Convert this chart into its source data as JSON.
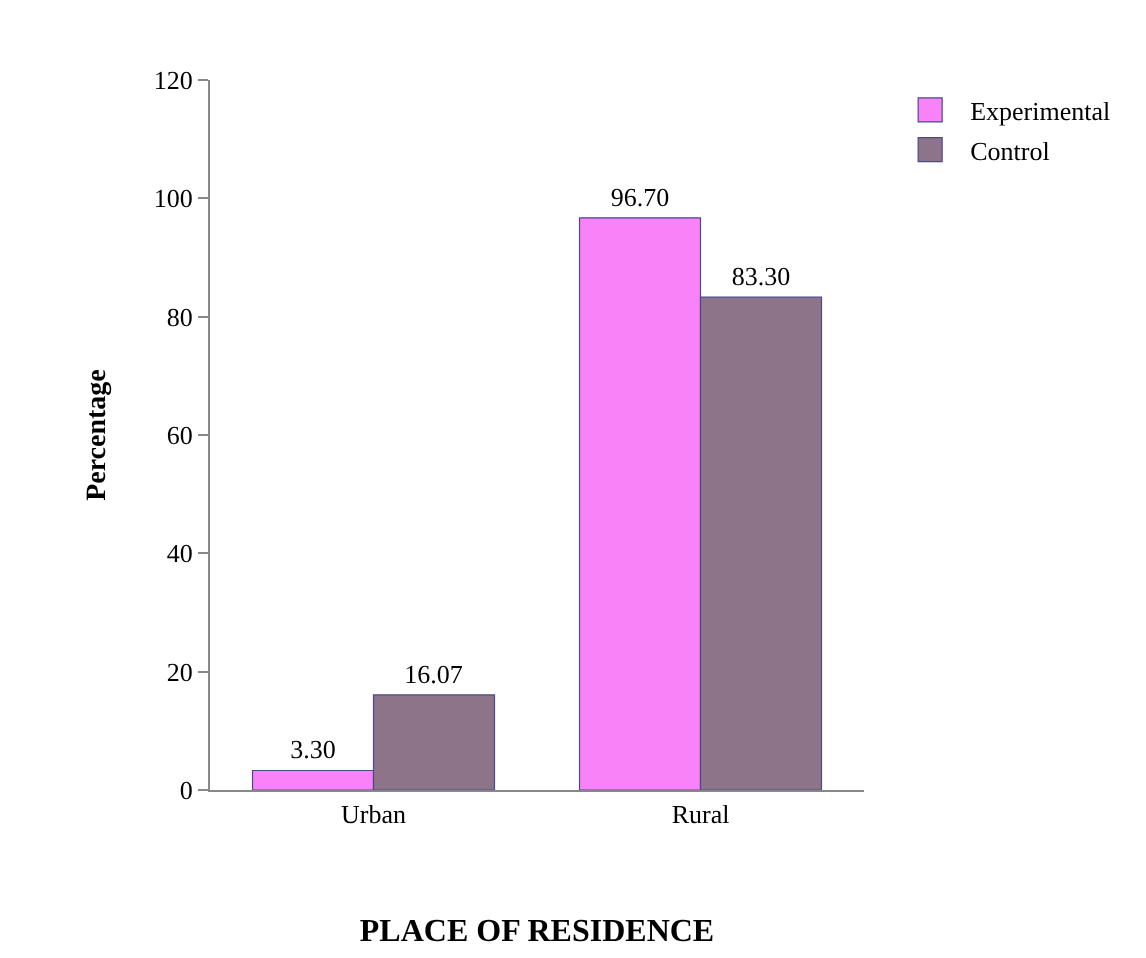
{
  "chart_data": {
    "type": "bar",
    "xlabel": "PLACE OF RESIDENCE",
    "ylabel": "Percentage",
    "categories": [
      "Urban",
      "Rural"
    ],
    "series": [
      {
        "name": "Experimental",
        "color": "#f882f8",
        "values": [
          3.3,
          96.7
        ],
        "value_labels": [
          "3.30",
          "96.70"
        ]
      },
      {
        "name": "Control",
        "color": "#8e7488",
        "values": [
          16.07,
          83.3
        ],
        "value_labels": [
          "16.07",
          "83.30"
        ]
      }
    ],
    "ylim": [
      0,
      120
    ],
    "yticks": [
      0,
      20,
      40,
      60,
      80,
      100,
      120
    ],
    "grid": false,
    "legend": "top right"
  }
}
